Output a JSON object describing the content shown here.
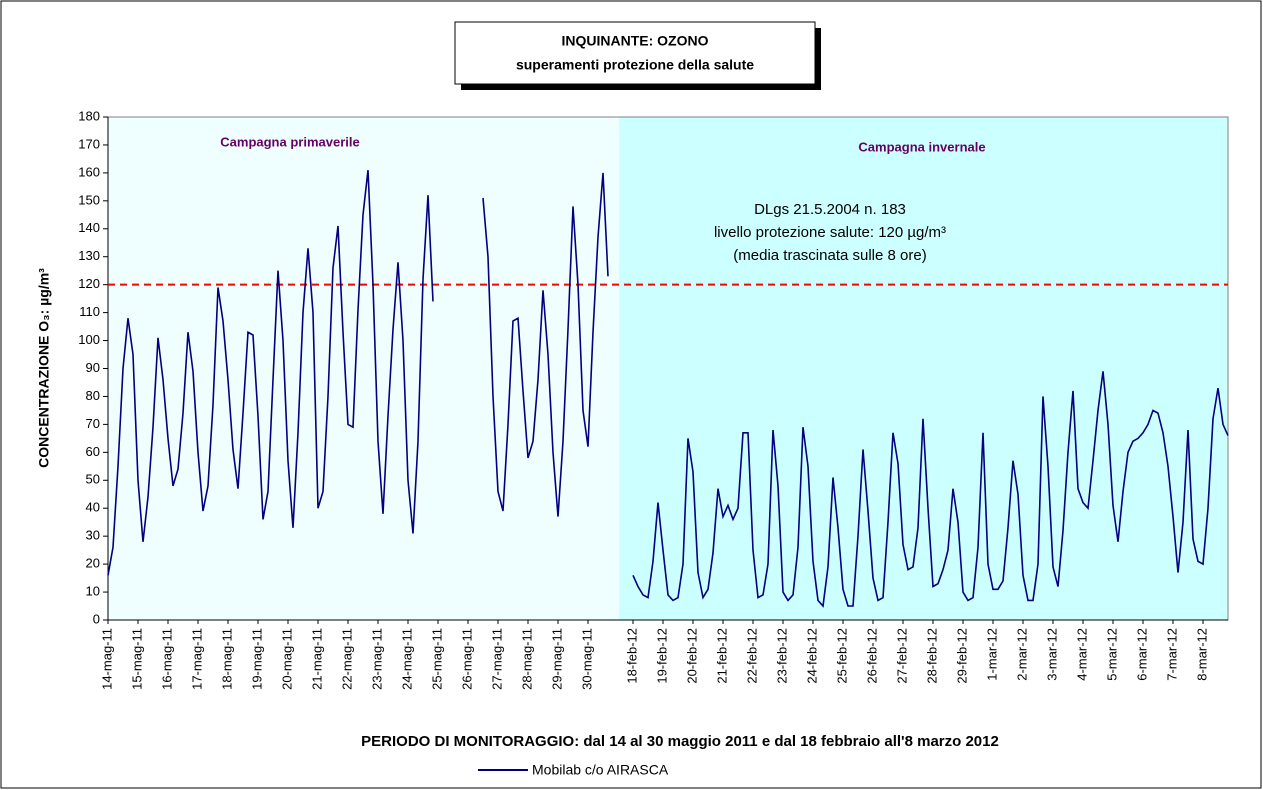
{
  "chart_data": {
    "type": "line",
    "title": [
      "INQUINANTE: OZONO",
      "superamenti protezione della salute"
    ],
    "y_label": "CONCENTRAZIONE O₃: µg/m³",
    "x_label": "PERIODO DI MONITORAGGIO: dal 14 al 30 maggio 2011 e dal 18 febbraio all'8 marzo 2012",
    "annotations": [
      "Campagna primaverile",
      "Campagna invernale",
      "DLgs 21.5.2004 n. 183",
      "livello protezione salute: 120 µg/m³",
      "(media trascinata sulle 8 ore)"
    ],
    "threshold": {
      "value": 120,
      "color": "#ff0000"
    },
    "regions": [
      {
        "color": "#effefe"
      },
      {
        "color": "#ccffff"
      }
    ],
    "ylim": [
      0,
      180
    ],
    "yticks": [
      0,
      10,
      20,
      30,
      40,
      50,
      60,
      70,
      80,
      90,
      100,
      110,
      120,
      130,
      140,
      150,
      160,
      170,
      180
    ],
    "grid": false,
    "categories": [
      "14-mag-11",
      null,
      null,
      null,
      null,
      null,
      "15-mag-11",
      null,
      null,
      null,
      null,
      null,
      "16-mag-11",
      null,
      null,
      null,
      null,
      null,
      "17-mag-11",
      null,
      null,
      null,
      null,
      null,
      "18-mag-11",
      null,
      null,
      null,
      null,
      null,
      "19-mag-11",
      null,
      null,
      null,
      null,
      null,
      "20-mag-11",
      null,
      null,
      null,
      null,
      null,
      "21-mag-11",
      null,
      null,
      null,
      null,
      null,
      "22-mag-11",
      null,
      null,
      null,
      null,
      null,
      "23-mag-11",
      null,
      null,
      null,
      null,
      null,
      "24-mag-11",
      null,
      null,
      null,
      null,
      null,
      "25-mag-11",
      null,
      null,
      null,
      null,
      null,
      "26-mag-11",
      null,
      null,
      null,
      null,
      null,
      "27-mag-11",
      null,
      null,
      null,
      null,
      null,
      "28-mag-11",
      null,
      null,
      null,
      null,
      null,
      "29-mag-11",
      null,
      null,
      null,
      null,
      null,
      "30-mag-11",
      null,
      null,
      null,
      null,
      null,
      null,
      null,
      null,
      "18-feb-12",
      null,
      null,
      null,
      null,
      null,
      "19-feb-12",
      null,
      null,
      null,
      null,
      null,
      "20-feb-12",
      null,
      null,
      null,
      null,
      null,
      "21-feb-12",
      null,
      null,
      null,
      null,
      null,
      "22-feb-12",
      null,
      null,
      null,
      null,
      null,
      "23-feb-12",
      null,
      null,
      null,
      null,
      null,
      "24-feb-12",
      null,
      null,
      null,
      null,
      null,
      "25-feb-12",
      null,
      null,
      null,
      null,
      null,
      "26-feb-12",
      null,
      null,
      null,
      null,
      null,
      "27-feb-12",
      null,
      null,
      null,
      null,
      null,
      "28-feb-12",
      null,
      null,
      null,
      null,
      null,
      "29-feb-12",
      null,
      null,
      null,
      null,
      null,
      "1-mar-12",
      null,
      null,
      null,
      null,
      null,
      "2-mar-12",
      null,
      null,
      null,
      null,
      null,
      "3-mar-12",
      null,
      null,
      null,
      null,
      null,
      "4-mar-12",
      null,
      null,
      null,
      null,
      null,
      "5-mar-12",
      null,
      null,
      null,
      null,
      null,
      "6-mar-12",
      null,
      null,
      null,
      null,
      null,
      "7-mar-12",
      null,
      null,
      null,
      null,
      null,
      "8-mar-12",
      null,
      null,
      null,
      null,
      null
    ],
    "series": [
      {
        "name": "Mobilab c/o AIRASCA",
        "color": "#000080",
        "values": [
          16,
          26,
          55,
          90,
          108,
          95,
          50,
          28,
          44,
          69,
          101,
          86,
          65,
          48,
          54,
          74,
          103,
          89,
          60,
          39,
          48,
          77,
          119,
          107,
          86,
          61,
          47,
          74,
          103,
          102,
          73,
          36,
          46,
          86,
          125,
          100,
          57,
          33,
          67,
          110,
          133,
          110,
          40,
          46,
          80,
          126,
          141,
          103,
          70,
          69,
          111,
          145,
          161,
          120,
          64,
          38,
          73,
          104,
          128,
          100,
          50,
          31,
          64,
          122,
          152,
          114,
          null,
          null,
          null,
          null,
          null,
          null,
          null,
          null,
          null,
          151,
          130,
          80,
          46,
          39,
          70,
          107,
          108,
          82,
          58,
          64,
          86,
          118,
          95,
          60,
          37,
          64,
          104,
          148,
          120,
          75,
          62,
          103,
          137,
          160,
          123,
          null,
          null,
          null,
          null,
          16,
          12,
          9,
          8,
          21,
          42,
          25,
          9,
          7,
          8,
          20,
          65,
          53,
          17,
          8,
          11,
          24,
          47,
          37,
          41,
          36,
          40,
          67,
          67,
          25,
          8,
          9,
          20,
          68,
          48,
          10,
          7,
          9,
          26,
          69,
          55,
          21,
          7,
          5,
          19,
          51,
          33,
          11,
          5,
          5,
          30,
          61,
          39,
          15,
          7,
          8,
          35,
          67,
          56,
          27,
          18,
          19,
          33,
          72,
          40,
          12,
          13,
          18,
          25,
          47,
          35,
          10,
          7,
          8,
          26,
          67,
          20,
          11,
          11,
          14,
          33,
          57,
          45,
          16,
          7,
          7,
          20,
          80,
          55,
          19,
          12,
          32,
          60,
          82,
          47,
          42,
          40,
          57,
          75,
          89,
          70,
          41,
          28,
          46,
          60,
          64,
          65,
          67,
          70,
          75,
          74,
          67,
          55,
          37,
          17,
          35,
          68,
          29,
          21,
          20,
          40,
          72,
          83,
          70,
          66
        ]
      }
    ]
  }
}
